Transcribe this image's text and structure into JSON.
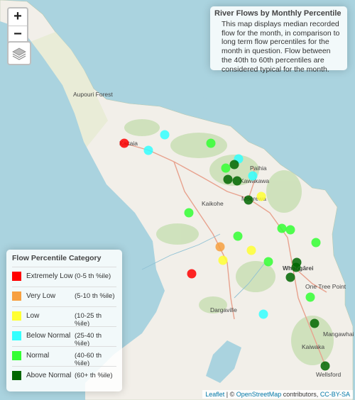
{
  "info": {
    "title": "River Flows by Monthly Percentile",
    "description": "This map displays median recorded flow for the month, in comparison to long term flow percentiles for the month in question. Flow between the 40th to 60th percentiles are considered typical for the month."
  },
  "zoom": {
    "in_label": "+",
    "out_label": "−"
  },
  "legend": {
    "title": "Flow Percentile Category",
    "items": [
      {
        "name": "Extremely Low",
        "range": "(0-5 th    %ile)",
        "color": "#ff0000"
      },
      {
        "name": "Very Low",
        "range": "(5-10 th    %ile)",
        "color": "#f7a040"
      },
      {
        "name": "Low",
        "range": "(10-25 th    %ile)",
        "color": "#ffff33"
      },
      {
        "name": "Below Normal",
        "range": "(25-40 th    %ile)",
        "color": "#33ffff"
      },
      {
        "name": "Normal",
        "range": "(40-60 th    %ile)",
        "color": "#33ff33"
      },
      {
        "name": "Above Normal",
        "range": "(60+ th    %ile)",
        "color": "#006600"
      }
    ]
  },
  "place_labels": [
    "Aupouri Forest",
    "Kaitaia",
    "Kaikohe",
    "Moerewa",
    "Kawakawa",
    "Whangārei",
    "One Tree Point",
    "Dargaville",
    "Kaiwaka",
    "Mangawhai Heads",
    "Wellsford",
    "Paihia"
  ],
  "attribution": {
    "leaflet": "Leaflet",
    "sep": " | © ",
    "osm": "OpenStreetMap",
    "contrib": " contributors, ",
    "license": "CC-BY-SA"
  },
  "sites": [
    {
      "category": "Extremely Low"
    },
    {
      "category": "Below Normal"
    },
    {
      "category": "Below Normal"
    },
    {
      "category": "Normal"
    },
    {
      "category": "Below Normal"
    },
    {
      "category": "Above Normal"
    },
    {
      "category": "Normal"
    },
    {
      "category": "Above Normal"
    },
    {
      "category": "Below Normal"
    },
    {
      "category": "Above Normal"
    },
    {
      "category": "Above Normal"
    },
    {
      "category": "Low"
    },
    {
      "category": "Normal"
    },
    {
      "category": "Normal"
    },
    {
      "category": "Normal"
    },
    {
      "category": "Normal"
    },
    {
      "category": "Normal"
    },
    {
      "category": "Very Low"
    },
    {
      "category": "Low"
    },
    {
      "category": "Low"
    },
    {
      "category": "Normal"
    },
    {
      "category": "Extremely Low"
    },
    {
      "category": "Above Normal"
    },
    {
      "category": "Above Normal"
    },
    {
      "category": "Above Normal"
    },
    {
      "category": "Normal"
    },
    {
      "category": "Below Normal"
    },
    {
      "category": "Above Normal"
    },
    {
      "category": "Above Normal"
    }
  ]
}
